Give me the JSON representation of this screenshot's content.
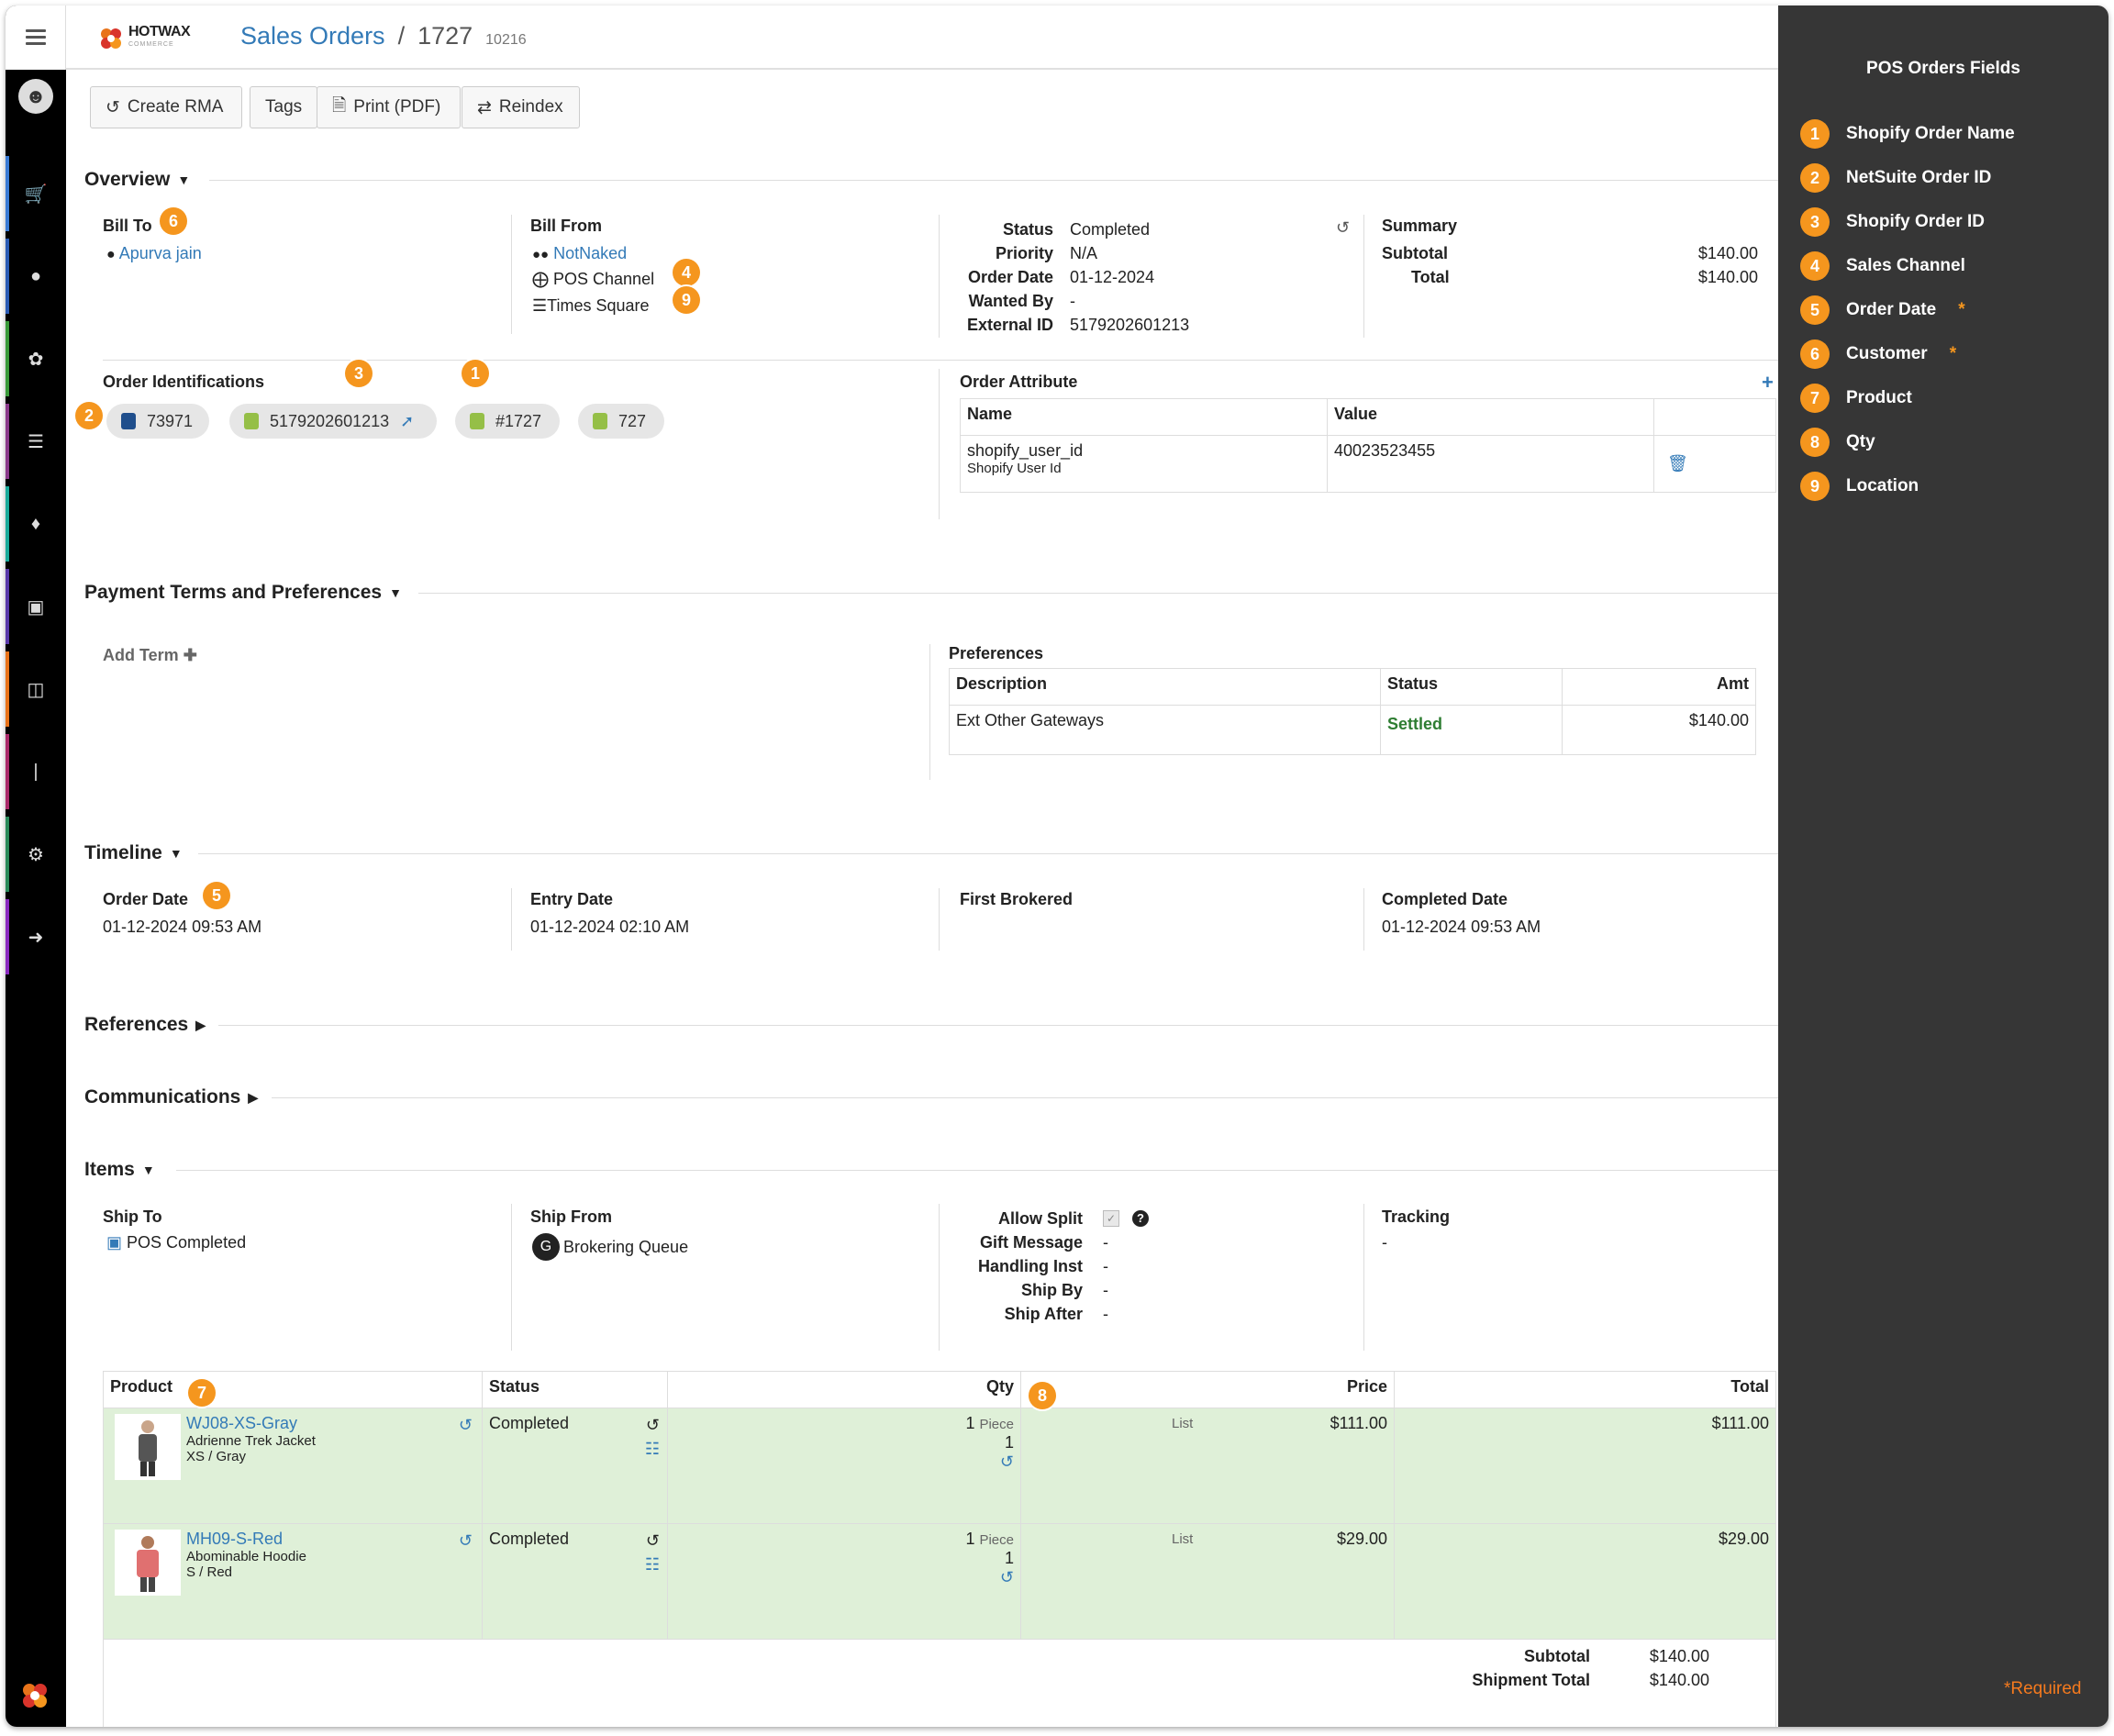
{
  "header": {
    "title": "Sales Orders",
    "order_number": "1727",
    "order_sub": "10216",
    "brand": "HOTWAX",
    "brand_sub": "COMMERCE"
  },
  "toolbar": {
    "create_rma": "Create RMA",
    "tags": "Tags",
    "print": "Print (PDF)",
    "reindex": "Reindex"
  },
  "overview": {
    "title": "Overview",
    "bill_to_label": "Bill To",
    "customer": "Apurva jain",
    "bill_from_label": "Bill From",
    "vendor": "NotNaked",
    "channel": "POS Channel",
    "location": "Times Square",
    "status_label": "Status",
    "status": "Completed",
    "priority_label": "Priority",
    "priority": "N/A",
    "order_date_label": "Order Date",
    "order_date": "01-12-2024",
    "wanted_by_label": "Wanted By",
    "wanted_by": "-",
    "external_id_label": "External ID",
    "external_id": "5179202601213",
    "summary_label": "Summary",
    "subtotal_label": "Subtotal",
    "subtotal": "$140.00",
    "total_label": "Total",
    "total": "$140.00",
    "identifications_label": "Order Identifications",
    "identifications": [
      "73971",
      "5179202601213",
      "#1727",
      "727"
    ],
    "attribute_label": "Order Attribute",
    "attr_headers": [
      "Name",
      "Value"
    ],
    "attr_name": "shopify_user_id",
    "attr_desc": "Shopify User Id",
    "attr_value": "40023523455"
  },
  "payment": {
    "title": "Payment Terms and Preferences",
    "add_term": "Add Term",
    "preferences_label": "Preferences",
    "headers": [
      "Description",
      "Status",
      "Amt"
    ],
    "description": "Ext Other Gateways",
    "status": "Settled",
    "amount": "$140.00"
  },
  "timeline": {
    "title": "Timeline",
    "order_date_label": "Order Date",
    "order_date": "01-12-2024 09:53 AM",
    "entry_date_label": "Entry Date",
    "entry_date": "01-12-2024 02:10 AM",
    "first_brokered_label": "First Brokered",
    "completed_date_label": "Completed Date",
    "completed_date": "01-12-2024 09:53 AM"
  },
  "references": {
    "title": "References"
  },
  "communications": {
    "title": "Communications"
  },
  "items": {
    "title": "Items",
    "ship_to_label": "Ship To",
    "ship_to": "POS Completed",
    "ship_from_label": "Ship From",
    "ship_from": "Brokering Queue",
    "ship_from_initial": "G",
    "allow_split_label": "Allow Split",
    "gift_message_label": "Gift Message",
    "gift_message": "-",
    "handling_label": "Handling Inst",
    "handling": "-",
    "ship_by_label": "Ship By",
    "ship_by": "-",
    "ship_after_label": "Ship After",
    "ship_after": "-",
    "tracking_label": "Tracking",
    "tracking": "-",
    "headers": [
      "Product",
      "Status",
      "Qty",
      "Price",
      "Total"
    ],
    "rows": [
      {
        "sku": "WJ08-XS-Gray",
        "name": "Adrienne Trek Jacket",
        "variant": "XS / Gray",
        "status": "Completed",
        "qty": "1",
        "unit": "Piece",
        "qty2": "1",
        "price_type": "List",
        "price": "$111.00",
        "total": "$111.00"
      },
      {
        "sku": "MH09-S-Red",
        "name": "Abominable Hoodie",
        "variant": "S / Red",
        "status": "Completed",
        "qty": "1",
        "unit": "Piece",
        "qty2": "1",
        "price_type": "List",
        "price": "$29.00",
        "total": "$29.00"
      }
    ],
    "subtotal_label": "Subtotal",
    "subtotal": "$140.00",
    "shipment_total_label": "Shipment Total",
    "shipment_total": "$140.00"
  },
  "badges": {
    "b1": "1",
    "b2": "2",
    "b3": "3",
    "b4": "4",
    "b5": "5",
    "b6": "6",
    "b7": "7",
    "b8": "8",
    "b9": "9"
  },
  "panel": {
    "title": "POS Orders Fields",
    "fields": [
      {
        "n": "1",
        "label": "Shopify Order Name",
        "req": ""
      },
      {
        "n": "2",
        "label": "NetSuite Order ID",
        "req": ""
      },
      {
        "n": "3",
        "label": "Shopify Order ID",
        "req": ""
      },
      {
        "n": "4",
        "label": "Sales Channel",
        "req": ""
      },
      {
        "n": "5",
        "label": "Order Date",
        "req": "*"
      },
      {
        "n": "6",
        "label": "Customer",
        "req": "*"
      },
      {
        "n": "7",
        "label": "Product",
        "req": ""
      },
      {
        "n": "8",
        "label": "Qty",
        "req": ""
      },
      {
        "n": "9",
        "label": "Location",
        "req": ""
      }
    ],
    "required_note": "*Required"
  },
  "colors": {
    "accent": "#337ab7",
    "badge": "#f5961e",
    "panel": "#363636",
    "success": "#2e7d32",
    "row_bg": "#dff0d8"
  }
}
